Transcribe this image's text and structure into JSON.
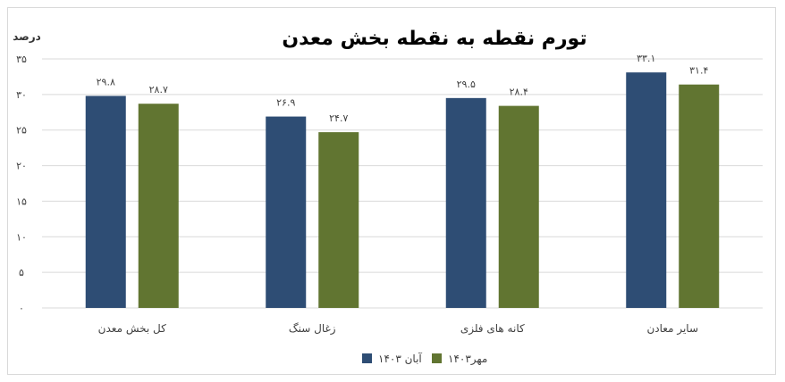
{
  "chart_data": {
    "type": "bar",
    "title": "تورم نقطه به نقطه بخش معدن",
    "ylabel": "درصد",
    "ylim": [
      0,
      35
    ],
    "yticks": [
      0,
      5,
      10,
      15,
      20,
      25,
      30,
      35
    ],
    "ytick_labels": [
      "۰",
      "۵",
      "۱۰",
      "۱۵",
      "۲۰",
      "۲۵",
      "۳۰",
      "۳۵"
    ],
    "categories": [
      "کل بخش معدن",
      "زغال سنگ",
      "کانه های فلزی",
      "سایر معادن"
    ],
    "series": [
      {
        "name": "آبان ۱۴۰۳",
        "color": "#2e4d74",
        "values": [
          29.8,
          26.9,
          29.5,
          33.1
        ],
        "labels": [
          "۲۹.۸",
          "۲۶.۹",
          "۲۹.۵",
          "۳۳.۱"
        ]
      },
      {
        "name": "مهر۱۴۰۳",
        "color": "#617531",
        "values": [
          28.7,
          24.7,
          28.4,
          31.4
        ],
        "labels": [
          "۲۸.۷",
          "۲۴.۷",
          "۲۸.۴",
          "۳۱.۴"
        ]
      }
    ],
    "grid": true,
    "legend": "bottom"
  }
}
